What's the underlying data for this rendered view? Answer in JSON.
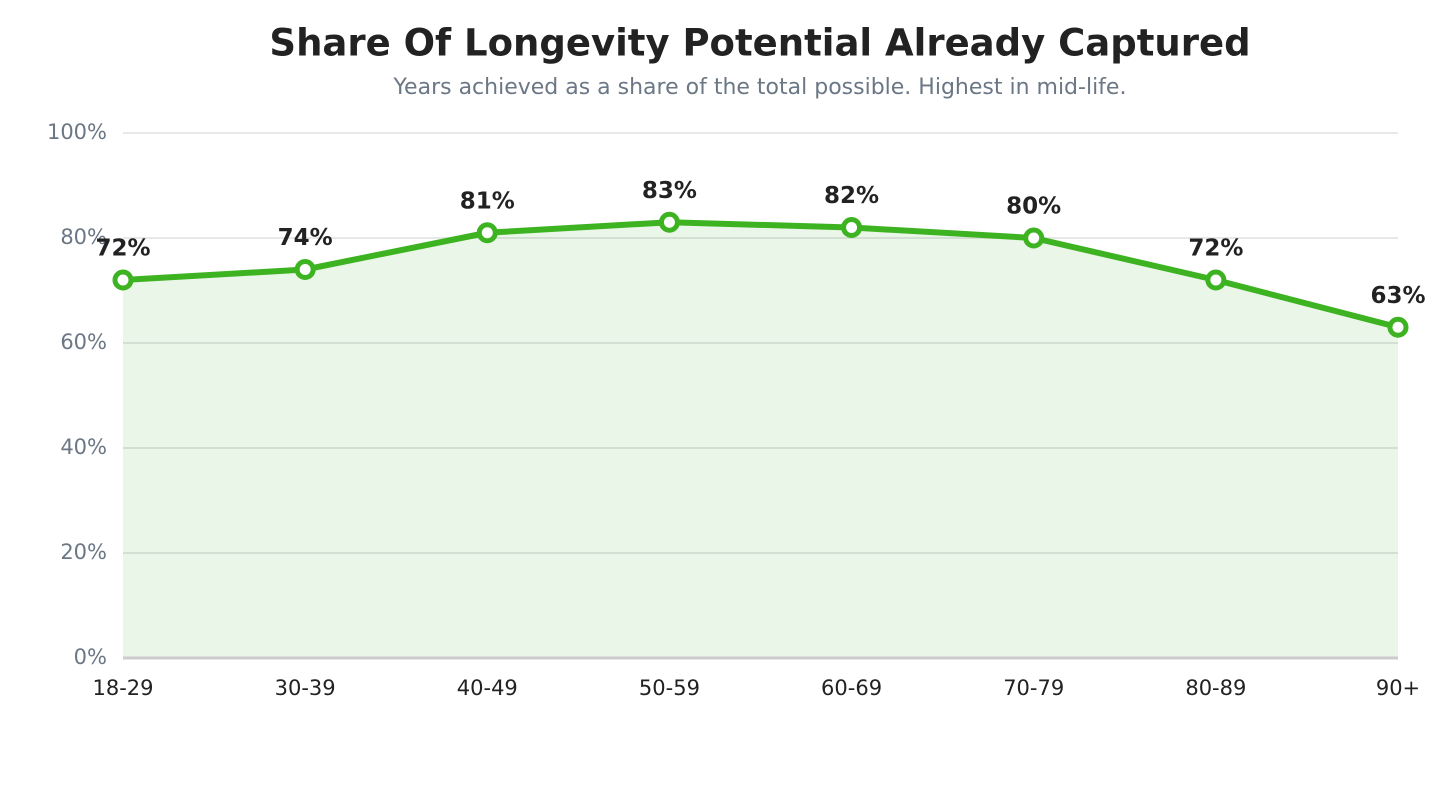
{
  "chart_data": {
    "type": "line",
    "title": "Share Of Longevity Potential Already Captured",
    "subtitle": "Years achieved as a share of the total possible. Highest in mid-life.",
    "categories": [
      "18-29",
      "30-39",
      "40-49",
      "50-59",
      "60-69",
      "70-79",
      "80-89",
      "90+"
    ],
    "values": [
      72,
      74,
      81,
      83,
      82,
      80,
      72,
      63
    ],
    "value_labels": [
      "72%",
      "74%",
      "81%",
      "83%",
      "82%",
      "80%",
      "72%",
      "63%"
    ],
    "color": "#3db322",
    "area": true,
    "ylim": [
      0,
      100
    ],
    "yticks": [
      {
        "value": 0,
        "label": "0%"
      },
      {
        "value": 20,
        "label": "20%"
      },
      {
        "value": 40,
        "label": "40%"
      },
      {
        "value": 60,
        "label": "60%"
      },
      {
        "value": 80,
        "label": "80%"
      },
      {
        "value": 100,
        "label": "100%"
      }
    ],
    "grid": true
  }
}
